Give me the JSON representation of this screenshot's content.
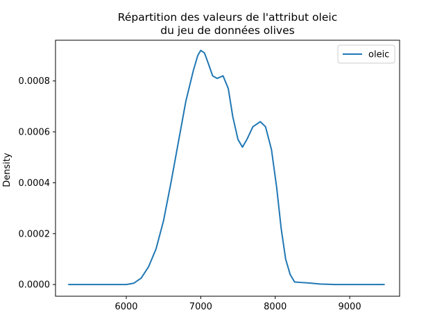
{
  "chart_data": {
    "type": "line",
    "title": "Répartition des valeurs de l'attribut oleic\ndu jeu de données olives",
    "title_lines": [
      "Répartition des valeurs de l'attribut oleic",
      "du jeu de données olives"
    ],
    "xlabel": "",
    "ylabel": "Density",
    "xlim": [
      5050,
      9670
    ],
    "ylim": [
      -4.6e-05,
      0.00096
    ],
    "x_ticks": [
      6000,
      7000,
      8000,
      9000
    ],
    "x_tick_labels": [
      "6000",
      "7000",
      "8000",
      "9000"
    ],
    "y_ticks": [
      0.0,
      0.0002,
      0.0004,
      0.0006,
      0.0008
    ],
    "y_tick_labels": [
      "0.0000",
      "0.0002",
      "0.0004",
      "0.0006",
      "0.0008"
    ],
    "grid": false,
    "legend": {
      "location": "top-right",
      "entries": [
        "oleic"
      ]
    },
    "series": [
      {
        "name": "oleic",
        "color": "#1f77b4",
        "points": [
          [
            5220,
            0.0
          ],
          [
            5600,
            0.0
          ],
          [
            6000,
            0.0
          ],
          [
            6100,
            5e-06
          ],
          [
            6200,
            2.5e-05
          ],
          [
            6300,
            7e-05
          ],
          [
            6400,
            0.00014
          ],
          [
            6500,
            0.00025
          ],
          [
            6600,
            0.0004
          ],
          [
            6700,
            0.00056
          ],
          [
            6800,
            0.00072
          ],
          [
            6900,
            0.00084
          ],
          [
            6960,
            0.0009
          ],
          [
            7000,
            0.00092
          ],
          [
            7050,
            0.00091
          ],
          [
            7100,
            0.00087
          ],
          [
            7160,
            0.00082
          ],
          [
            7220,
            0.00081
          ],
          [
            7300,
            0.00082
          ],
          [
            7370,
            0.00077
          ],
          [
            7430,
            0.00066
          ],
          [
            7500,
            0.00057
          ],
          [
            7560,
            0.00054
          ],
          [
            7620,
            0.00057
          ],
          [
            7700,
            0.00062
          ],
          [
            7800,
            0.00064
          ],
          [
            7870,
            0.00062
          ],
          [
            7950,
            0.00053
          ],
          [
            8020,
            0.00038
          ],
          [
            8080,
            0.00022
          ],
          [
            8140,
            0.0001
          ],
          [
            8200,
            4e-05
          ],
          [
            8260,
            1e-05
          ],
          [
            8350,
            8e-06
          ],
          [
            8450,
            6e-06
          ],
          [
            8600,
            2e-06
          ],
          [
            8800,
            0.0
          ],
          [
            9100,
            0.0
          ],
          [
            9470,
            0.0
          ]
        ]
      }
    ]
  }
}
